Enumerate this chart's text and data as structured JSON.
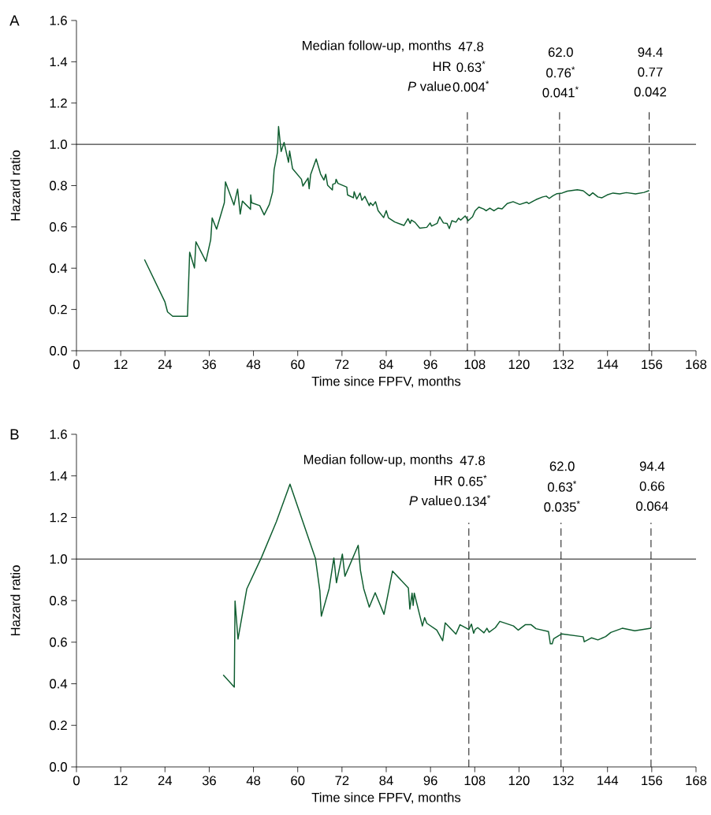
{
  "chart_data": [
    {
      "type": "line",
      "title": "A",
      "xlabel": "Time since FPFV, months",
      "ylabel": "Hazard ratio",
      "xlim": [
        0,
        168
      ],
      "xticks": [
        0,
        12,
        24,
        36,
        48,
        60,
        72,
        84,
        96,
        108,
        120,
        132,
        144,
        156,
        168
      ],
      "ylim": [
        0,
        1.6
      ],
      "yticks": [
        {
          "value": 0,
          "label": "0.0"
        },
        {
          "value": 0.2,
          "label": "0.2"
        },
        {
          "value": 0.4,
          "label": "0.4"
        },
        {
          "value": 0.6,
          "label": "0.6"
        },
        {
          "value": 0.8,
          "label": "0.8"
        },
        {
          "value": 1.0,
          "label": "1.0"
        },
        {
          "value": 1.2,
          "label": "1.2"
        },
        {
          "value": 1.4,
          "label": "1.4"
        },
        {
          "value": 1.6,
          "label": "1.6"
        }
      ],
      "series": [
        {
          "color": "#0d5c2e",
          "x": [
            18.45,
            24.0,
            24.7,
            26.1,
            30.1,
            30.7,
            32.0,
            32.4,
            35.1,
            36.4,
            36.8,
            38.0,
            40.1,
            40.4,
            42.7,
            43.7,
            44.4,
            45.0,
            47.2,
            47.25,
            47.5,
            49.7,
            50.9,
            52.3,
            53.2,
            53.6,
            54.5,
            54.8,
            55.5,
            56.3,
            57.5,
            57.8,
            58.6,
            61.0,
            61.4,
            62.8,
            63.1,
            63.5,
            65.0,
            66.2,
            67.1,
            67.6,
            68.1,
            69.4,
            69.5,
            70.2,
            70.4,
            70.9,
            73.3,
            73.5,
            75.1,
            75.3,
            76.0,
            76.9,
            77.4,
            78.2,
            79.4,
            79.7,
            80.4,
            81.1,
            81.8,
            83.3,
            84.0,
            84.6,
            86.3,
            88.8,
            89.9,
            90.5,
            90.8,
            91.8,
            93.1,
            95.0,
            95.9,
            96.3,
            97.8,
            98.5,
            99.5,
            100.5,
            101.1,
            101.8,
            102.9,
            103.6,
            104.2,
            105.4,
            106.2,
            107.4,
            108.1,
            109.1,
            110.4,
            111.1,
            112.1,
            113.2,
            114.3,
            115.4,
            116.8,
            118.4,
            120.2,
            122.1,
            122.6,
            124.6,
            126.4,
            127.4,
            128.2,
            129.2,
            130.3,
            131.7,
            133.1,
            135.8,
            137.4,
            139.1,
            140.0,
            141.4,
            142.5,
            143.9,
            145.5,
            147.3,
            149.1,
            151.6,
            153.9,
            155.3
          ],
          "values": [
            0.442,
            0.236,
            0.188,
            0.167,
            0.167,
            0.477,
            0.401,
            0.528,
            0.433,
            0.538,
            0.643,
            0.589,
            0.717,
            0.818,
            0.706,
            0.783,
            0.662,
            0.725,
            0.685,
            0.755,
            0.717,
            0.703,
            0.658,
            0.709,
            0.77,
            0.878,
            0.961,
            1.086,
            0.965,
            1.009,
            0.913,
            0.968,
            0.882,
            0.831,
            0.798,
            0.837,
            0.785,
            0.853,
            0.929,
            0.856,
            0.827,
            0.855,
            0.802,
            0.779,
            0.806,
            0.811,
            0.831,
            0.811,
            0.793,
            0.755,
            0.741,
            0.77,
            0.735,
            0.764,
            0.729,
            0.748,
            0.703,
            0.717,
            0.704,
            0.722,
            0.679,
            0.645,
            0.679,
            0.644,
            0.624,
            0.607,
            0.64,
            0.617,
            0.633,
            0.622,
            0.594,
            0.598,
            0.619,
            0.604,
            0.617,
            0.649,
            0.619,
            0.617,
            0.592,
            0.63,
            0.623,
            0.642,
            0.633,
            0.653,
            0.63,
            0.649,
            0.678,
            0.696,
            0.687,
            0.678,
            0.691,
            0.678,
            0.691,
            0.687,
            0.713,
            0.722,
            0.709,
            0.72,
            0.713,
            0.732,
            0.745,
            0.749,
            0.738,
            0.751,
            0.761,
            0.764,
            0.773,
            0.78,
            0.775,
            0.751,
            0.765,
            0.745,
            0.741,
            0.755,
            0.764,
            0.76,
            0.766,
            0.76,
            0.767,
            0.776
          ]
        }
      ],
      "ref_lines": [
        {
          "axis": "y",
          "value": 1.0,
          "color": "#000000",
          "line_style": "solid"
        },
        {
          "axis": "x",
          "value": 106,
          "color": "#000000",
          "line_style": "dashed"
        },
        {
          "axis": "x",
          "value": 131,
          "color": "#000000",
          "line_style": "dashed"
        },
        {
          "axis": "x",
          "value": 155.3,
          "color": "#000000",
          "line_style": "dashed"
        }
      ],
      "annotations": [
        "Median follow-up, months",
        "HR",
        "*P* value",
        "47.8",
        "0.63$^{*}$",
        "0.004$^{*}$",
        "62.0",
        "0.76$^{*}$",
        "0.041$^{*}$",
        "94.4",
        "0.77",
        "0.042"
      ]
    },
    {
      "type": "line",
      "title": "B",
      "xlabel": "Time since FPFV, months",
      "ylabel": "Hazard ratio",
      "xlim": [
        0,
        168
      ],
      "xticks": [
        0,
        12,
        24,
        36,
        48,
        60,
        72,
        84,
        96,
        108,
        120,
        132,
        144,
        156,
        168
      ],
      "ylim": [
        0,
        1.6
      ],
      "yticks": [
        {
          "value": 0,
          "label": "0.0"
        },
        {
          "value": 0.2,
          "label": "0.2"
        },
        {
          "value": 0.4,
          "label": "0.4"
        },
        {
          "value": 0.6,
          "label": "0.6"
        },
        {
          "value": 0.8,
          "label": "0.8"
        },
        {
          "value": 1.0,
          "label": "1.0"
        },
        {
          "value": 1.2,
          "label": "1.2"
        },
        {
          "value": 1.4,
          "label": "1.4"
        },
        {
          "value": 1.6,
          "label": "1.6"
        }
      ],
      "series": [
        {
          "color": "#0d5c2e",
          "x": [
            39.8,
            42.8,
            43.0,
            43.8,
            46.2,
            50.2,
            54.2,
            57.9,
            64.8,
            66.0,
            66.4,
            68.5,
            69.8,
            70.5,
            72.1,
            72.8,
            76.4,
            77.0,
            77.9,
            79.4,
            81.0,
            83.4,
            85.7,
            90.0,
            90.4,
            91.0,
            91.3,
            91.6,
            93.8,
            94.4,
            95.0,
            97.7,
            99.3,
            100.0,
            102.9,
            104.0,
            106.4,
            107.1,
            107.7,
            108.1,
            108.8,
            110.5,
            111.3,
            111.9,
            113.6,
            114.8,
            118.5,
            119.8,
            121.7,
            123.3,
            124.6,
            128.0,
            128.5,
            129.0,
            129.4,
            131.6,
            137.4,
            137.7,
            139.7,
            141.4,
            143.5,
            144.9,
            148.0,
            151.4,
            155.8
          ],
          "values": [
            0.443,
            0.384,
            0.798,
            0.615,
            0.857,
            1.009,
            1.179,
            1.36,
            1.003,
            0.847,
            0.725,
            0.857,
            1.005,
            0.886,
            1.024,
            0.917,
            1.066,
            0.946,
            0.857,
            0.769,
            0.838,
            0.734,
            0.942,
            0.861,
            0.759,
            0.836,
            0.777,
            0.836,
            0.678,
            0.718,
            0.691,
            0.658,
            0.607,
            0.693,
            0.639,
            0.684,
            0.661,
            0.687,
            0.643,
            0.661,
            0.67,
            0.645,
            0.667,
            0.648,
            0.67,
            0.7,
            0.678,
            0.658,
            0.684,
            0.684,
            0.665,
            0.651,
            0.592,
            0.592,
            0.617,
            0.64,
            0.626,
            0.602,
            0.621,
            0.611,
            0.627,
            0.647,
            0.667,
            0.655,
            0.667
          ]
        }
      ],
      "ref_lines": [
        {
          "axis": "y",
          "value": 1.0,
          "color": "#000000",
          "line_style": "solid"
        },
        {
          "axis": "x",
          "value": 106.4,
          "color": "#000000",
          "line_style": "dashed"
        },
        {
          "axis": "x",
          "value": 131.4,
          "color": "#000000",
          "line_style": "dashed"
        },
        {
          "axis": "x",
          "value": 155.8,
          "color": "#000000",
          "line_style": "dashed"
        }
      ],
      "annotations": [
        "Median follow-up, months",
        "HR",
        "*P* value",
        "47.8",
        "0.65$^{*}$",
        "0.134$^{*}$",
        "62.0",
        "0.63$^{*}$",
        "0.035$^{*}$",
        "94.4",
        "0.66",
        "0.064"
      ]
    }
  ]
}
